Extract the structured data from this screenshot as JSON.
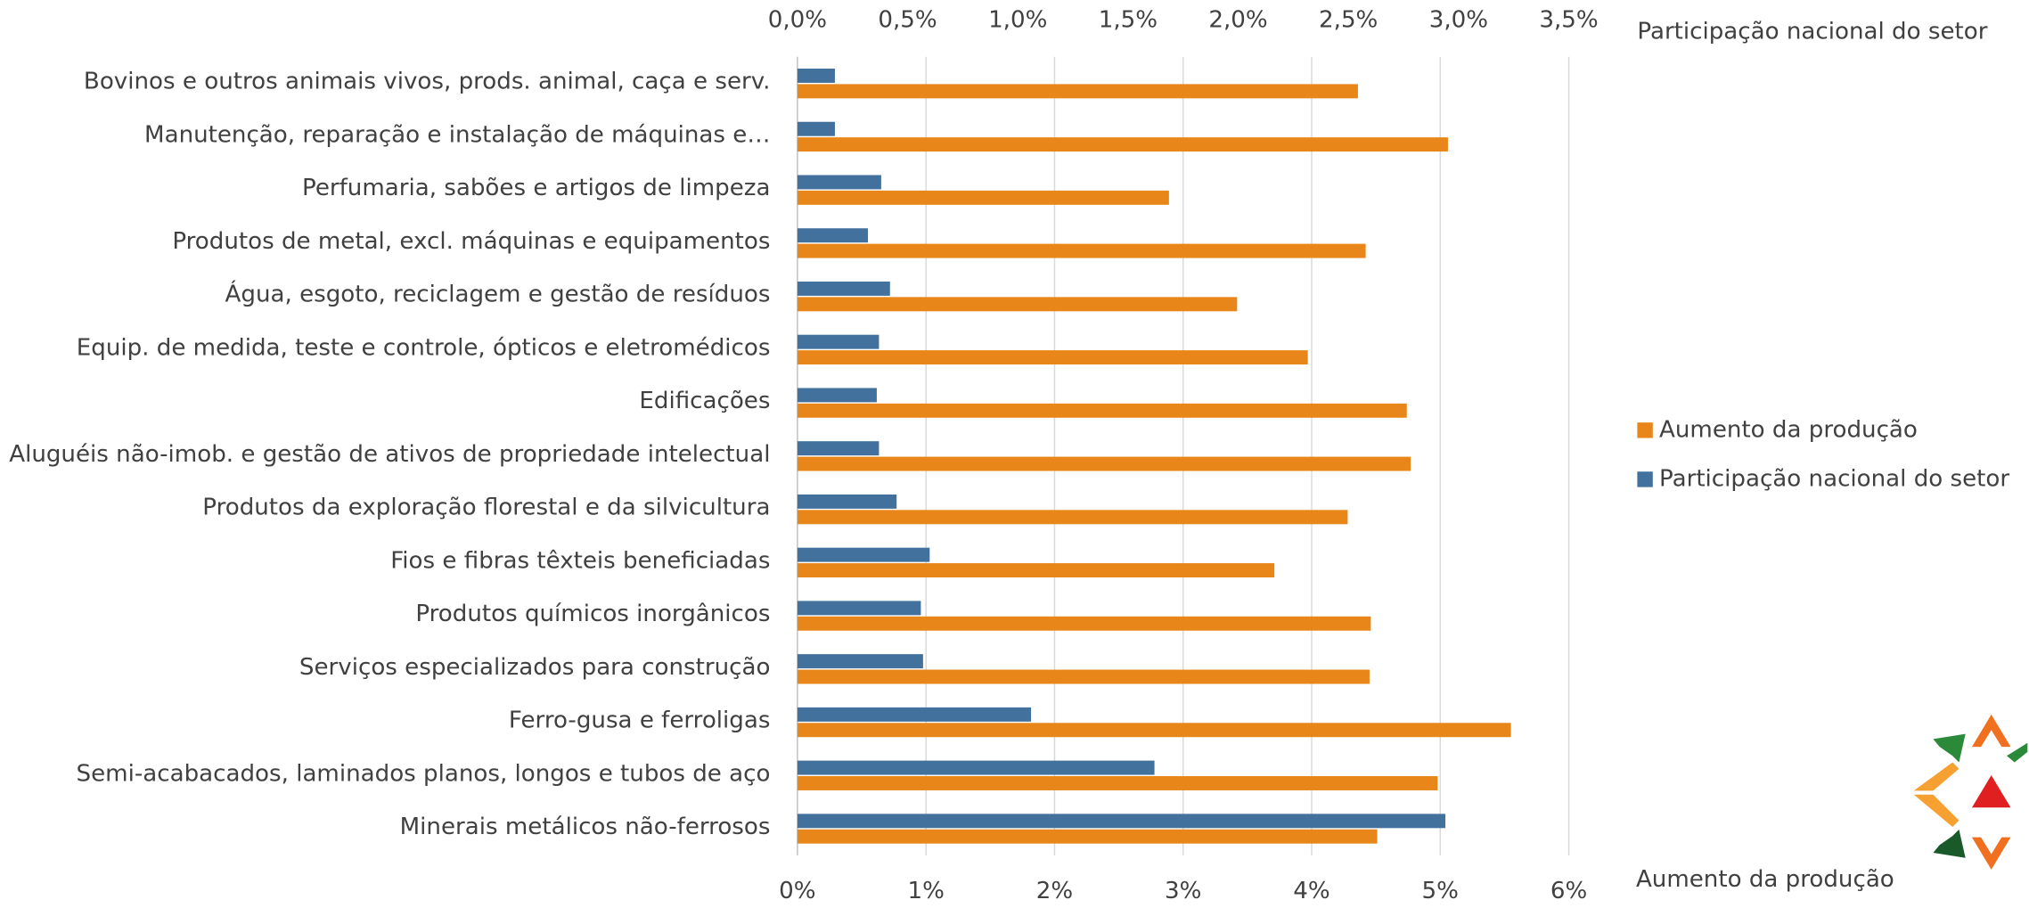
{
  "chart_data": {
    "type": "hbar",
    "categories": [
      "Bovinos e outros animais vivos, prods. animal, caça e serv.",
      "Manutenção, reparação e instalação de máquinas e…",
      "Perfumaria, sabões e artigos de limpeza",
      "Produtos de metal, excl. máquinas e equipamentos",
      "Água, esgoto, reciclagem e gestão de resíduos",
      "Equip. de medida, teste e controle, ópticos e eletromédicos",
      "Edificações",
      "Aluguéis não-imob. e gestão de ativos de propriedade intelectual",
      "Produtos da exploração florestal e da silvicultura",
      "Fios e fibras têxteis beneficiadas",
      "Produtos químicos inorgânicos",
      "Serviços especializados para construção",
      "Ferro-gusa e ferroligas",
      "Semi-acabacados, laminados planos, longos e tubos de aço",
      "Minerais metálicos não-ferrosos"
    ],
    "series": [
      {
        "name": "Aumento da produção",
        "color": "#e8861a",
        "values": [
          4.36,
          5.06,
          2.89,
          4.42,
          3.42,
          3.97,
          4.74,
          4.77,
          4.28,
          3.71,
          4.46,
          4.45,
          5.55,
          4.98,
          4.51
        ]
      },
      {
        "name": "Participação nacional do setor",
        "color": "#41719c",
        "axis": "x2",
        "values": [
          0.17,
          0.17,
          0.38,
          0.32,
          0.42,
          0.37,
          0.36,
          0.37,
          0.45,
          0.6,
          0.56,
          0.57,
          1.06,
          1.62,
          2.94
        ]
      }
    ],
    "x_label": "Aumento da produção",
    "x2_label": "Participação nacional do setor",
    "xlim": [
      0,
      6
    ],
    "xticks": [
      {
        "value": 0,
        "label": "0%"
      },
      {
        "value": 1,
        "label": "1%"
      },
      {
        "value": 2,
        "label": "2%"
      },
      {
        "value": 3,
        "label": "3%"
      },
      {
        "value": 4,
        "label": "4%"
      },
      {
        "value": 5,
        "label": "5%"
      },
      {
        "value": 6,
        "label": "6%"
      }
    ],
    "x2lim": [
      0,
      3.5
    ],
    "x2ticks": [
      {
        "value": 0,
        "label": "0,0%"
      },
      {
        "value": 0.5,
        "label": "0,5%"
      },
      {
        "value": 1,
        "label": "1,0%"
      },
      {
        "value": 1.5,
        "label": "1,5%"
      },
      {
        "value": 2,
        "label": "2,0%"
      },
      {
        "value": 2.5,
        "label": "2,5%"
      },
      {
        "value": 3,
        "label": "3,0%"
      },
      {
        "value": 3.5,
        "label": "3,5%"
      }
    ],
    "grid": true,
    "legend": "right"
  }
}
